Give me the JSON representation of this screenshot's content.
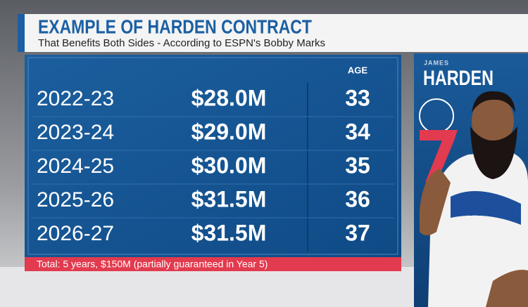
{
  "header": {
    "title": "EXAMPLE OF HARDEN CONTRACT",
    "subtitle": "That Benefits Both Sides - According to ESPN's Bobby Marks"
  },
  "table": {
    "header": "AGE",
    "rows": [
      [
        "2022-23",
        "$28.0M",
        "33"
      ],
      [
        "2023-24",
        "$29.0M",
        "34"
      ],
      [
        "2024-25",
        "$30.0M",
        "35"
      ],
      [
        "2025-26",
        "$31.5M",
        "36"
      ],
      [
        "2026-27",
        "$31.5M",
        "37"
      ]
    ]
  },
  "footer": "Total: 5 years, $150M (partially guaranteed in Year 5)",
  "player": {
    "first_name": "JAMES",
    "last_name": "HARDEN"
  }
}
